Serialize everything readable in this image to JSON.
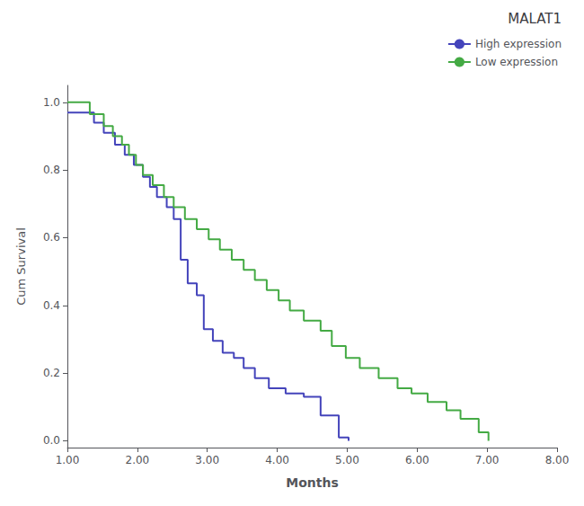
{
  "chart_data": {
    "type": "step",
    "title": "MALAT1",
    "xlabel": "Months",
    "ylabel": "Cum Survival",
    "xlim": [
      1.0,
      8.0
    ],
    "ylim": [
      -0.02,
      1.05
    ],
    "xticks": [
      {
        "value": 1.0,
        "label": "1.00"
      },
      {
        "value": 2.0,
        "label": "2.00"
      },
      {
        "value": 3.0,
        "label": "3.00"
      },
      {
        "value": 4.0,
        "label": "4.00"
      },
      {
        "value": 5.0,
        "label": "5.00"
      },
      {
        "value": 6.0,
        "label": "6.00"
      },
      {
        "value": 7.0,
        "label": "7.00"
      },
      {
        "value": 8.0,
        "label": "8.00"
      }
    ],
    "yticks": [
      {
        "value": 0.0,
        "label": "0.0"
      },
      0.2,
      0.4,
      0.6,
      0.8,
      {
        "value": 1.0,
        "label": "1.0"
      }
    ],
    "grid": false,
    "legend": "upper right",
    "series": [
      {
        "name": "High expression",
        "color": "#4444bb",
        "x": [
          1.0,
          1.38,
          1.52,
          1.68,
          1.82,
          1.95,
          2.08,
          2.18,
          2.28,
          2.42,
          2.52,
          2.62,
          2.72,
          2.85,
          2.95,
          3.08,
          3.22,
          3.38,
          3.52,
          3.68,
          3.88,
          4.12,
          4.38,
          4.62,
          4.88,
          5.02
        ],
        "values": [
          0.97,
          0.94,
          0.91,
          0.875,
          0.845,
          0.815,
          0.78,
          0.75,
          0.72,
          0.69,
          0.655,
          0.535,
          0.465,
          0.43,
          0.33,
          0.295,
          0.26,
          0.245,
          0.215,
          0.185,
          0.155,
          0.14,
          0.13,
          0.075,
          0.01,
          0.0
        ]
      },
      {
        "name": "Low expression",
        "color": "#44aa44",
        "x": [
          1.0,
          1.32,
          1.52,
          1.65,
          1.78,
          1.88,
          1.98,
          2.08,
          2.22,
          2.38,
          2.52,
          2.68,
          2.85,
          3.02,
          3.18,
          3.35,
          3.52,
          3.68,
          3.85,
          4.02,
          4.18,
          4.38,
          4.62,
          4.78,
          4.98,
          5.18,
          5.45,
          5.72,
          5.92,
          6.15,
          6.42,
          6.62,
          6.88,
          7.02
        ],
        "values": [
          1.0,
          0.965,
          0.93,
          0.9,
          0.875,
          0.845,
          0.815,
          0.785,
          0.755,
          0.72,
          0.69,
          0.655,
          0.625,
          0.595,
          0.565,
          0.535,
          0.505,
          0.475,
          0.445,
          0.415,
          0.385,
          0.355,
          0.325,
          0.28,
          0.245,
          0.215,
          0.185,
          0.155,
          0.14,
          0.115,
          0.09,
          0.065,
          0.025,
          0.0
        ]
      }
    ]
  }
}
